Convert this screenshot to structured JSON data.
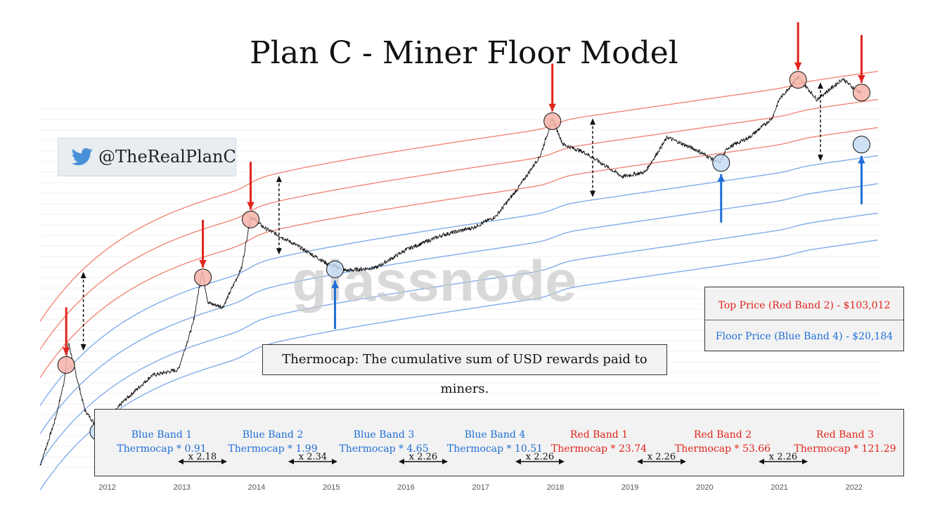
{
  "title": "Plan C - Miner Floor Model",
  "handle": "@TheRealPlanC",
  "watermark": "glassnode",
  "definition": "Thermocap: The cumulative sum of USD rewards paid to miners.",
  "price_box": {
    "top_price": "Top Price (Red Band 2) - $103,012",
    "floor_price": "Floor Price (Blue Band 4) - $20,184"
  },
  "bands": [
    {
      "name": "Blue Band 1",
      "formula": "Thermocap * 0.91",
      "color": "#1f6fd6"
    },
    {
      "name": "Blue Band 2",
      "formula": "Thermocap * 1.99",
      "color": "#1f6fd6"
    },
    {
      "name": "Blue Band 3",
      "formula": "Thermocap * 4.65",
      "color": "#1f6fd6"
    },
    {
      "name": "Blue Band 4",
      "formula": "Thermocap * 10.51",
      "color": "#1f6fd6"
    },
    {
      "name": "Red Band 1",
      "formula": "Thermocap * 23.74",
      "color": "#e0241b"
    },
    {
      "name": "Red Band 2",
      "formula": "Thermocap * 53.66",
      "color": "#e0241b"
    },
    {
      "name": "Red Band 3",
      "formula": "Thermocap * 121.29",
      "color": "#e0241b"
    }
  ],
  "multipliers": [
    "x 2.18",
    "x 2.34",
    "x 2.26",
    "x 2.26",
    "x 2.26",
    "x 2.26"
  ],
  "colors": {
    "blue": "#1f6fd6",
    "red": "#e0241b",
    "blue_band": "#7aa7ea",
    "red_band": "#f08070"
  },
  "chart_data": {
    "type": "line",
    "title": "Plan C - Miner Floor Model",
    "x_ticks": [
      "2012",
      "2013",
      "2014",
      "2015",
      "2016",
      "2017",
      "2018",
      "2019",
      "2020",
      "2021",
      "2022"
    ],
    "y_scale": "log",
    "xlim": [
      2011.1,
      2022.35
    ],
    "series_note": "BTC price (black) with thermocap multiple bands (4 blue, 3 red)",
    "band_multipliers": [
      0.91,
      1.99,
      4.65,
      10.51,
      23.74,
      53.66,
      121.29
    ],
    "price": {
      "x": [
        2011.1,
        2011.3,
        2011.42,
        2011.48,
        2011.55,
        2011.7,
        2011.9,
        2012.2,
        2012.6,
        2012.95,
        2013.15,
        2013.27,
        2013.35,
        2013.55,
        2013.8,
        2013.92,
        2014.1,
        2014.5,
        2014.95,
        2015.2,
        2015.6,
        2016.0,
        2016.5,
        2016.9,
        2017.2,
        2017.5,
        2017.8,
        2017.96,
        2018.1,
        2018.4,
        2018.9,
        2019.2,
        2019.5,
        2019.9,
        2020.2,
        2020.3,
        2020.6,
        2020.9,
        2021.0,
        2021.25,
        2021.5,
        2021.7,
        2021.85,
        2022.0,
        2022.1
      ],
      "y": [
        0.8,
        3,
        9,
        29,
        15,
        4,
        2.2,
        5,
        11,
        13,
        50,
        230,
        90,
        80,
        250,
        1100,
        800,
        500,
        280,
        230,
        250,
        420,
        650,
        800,
        1100,
        2500,
        6500,
        19000,
        9000,
        7000,
        3500,
        4000,
        11000,
        7500,
        5200,
        8000,
        11000,
        19000,
        33000,
        63000,
        33000,
        46000,
        60000,
        45000,
        40000
      ]
    },
    "annotations": {
      "tops": [
        2011.45,
        2013.28,
        2013.92,
        2017.96,
        2021.25,
        2022.1
      ],
      "bottoms": [
        2011.88,
        2015.05,
        2020.22,
        2022.1
      ]
    }
  }
}
